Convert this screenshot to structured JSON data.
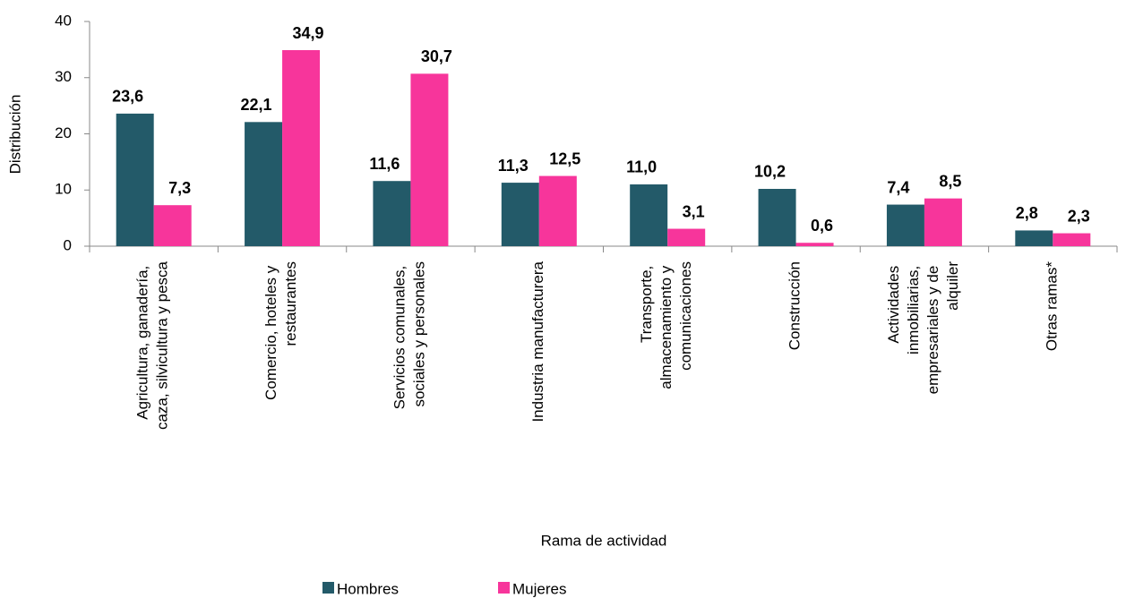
{
  "chart_data": {
    "type": "bar",
    "categories": [
      "Agricultura, ganadería,\ncaza, silvicultura y pesca",
      "Comercio, hoteles y\nrestaurantes",
      "Servicios comunales,\nsociales y personales",
      "Industria manufacturera",
      "Transporte,\nalmacenamiento y\ncomunicaciones",
      "Construcción",
      "Actividades\ninmobiliarias,\nempresariales y de\nalquiler",
      "Otras ramas*"
    ],
    "series": [
      {
        "name": "Hombres",
        "color": "#235a69",
        "values": [
          23.6,
          22.1,
          11.6,
          11.3,
          11.0,
          10.2,
          7.4,
          2.8
        ],
        "value_labels": [
          "23,6",
          "22,1",
          "11,6",
          "11,3",
          "11,0",
          "10,2",
          "7,4",
          "2,8"
        ]
      },
      {
        "name": "Mujeres",
        "color": "#f7359b",
        "values": [
          7.3,
          34.9,
          30.7,
          12.5,
          3.1,
          0.6,
          8.5,
          2.3
        ],
        "value_labels": [
          "7,3",
          "34,9",
          "30,7",
          "12,5",
          "3,1",
          "0,6",
          "8,5",
          "2,3"
        ]
      }
    ],
    "ylabel": "Distribución",
    "xlabel": "Rama de actividad",
    "ylim": [
      0,
      40
    ],
    "yticks": [
      0,
      10,
      20,
      30,
      40
    ],
    "grid": false,
    "legend": "bottom"
  }
}
